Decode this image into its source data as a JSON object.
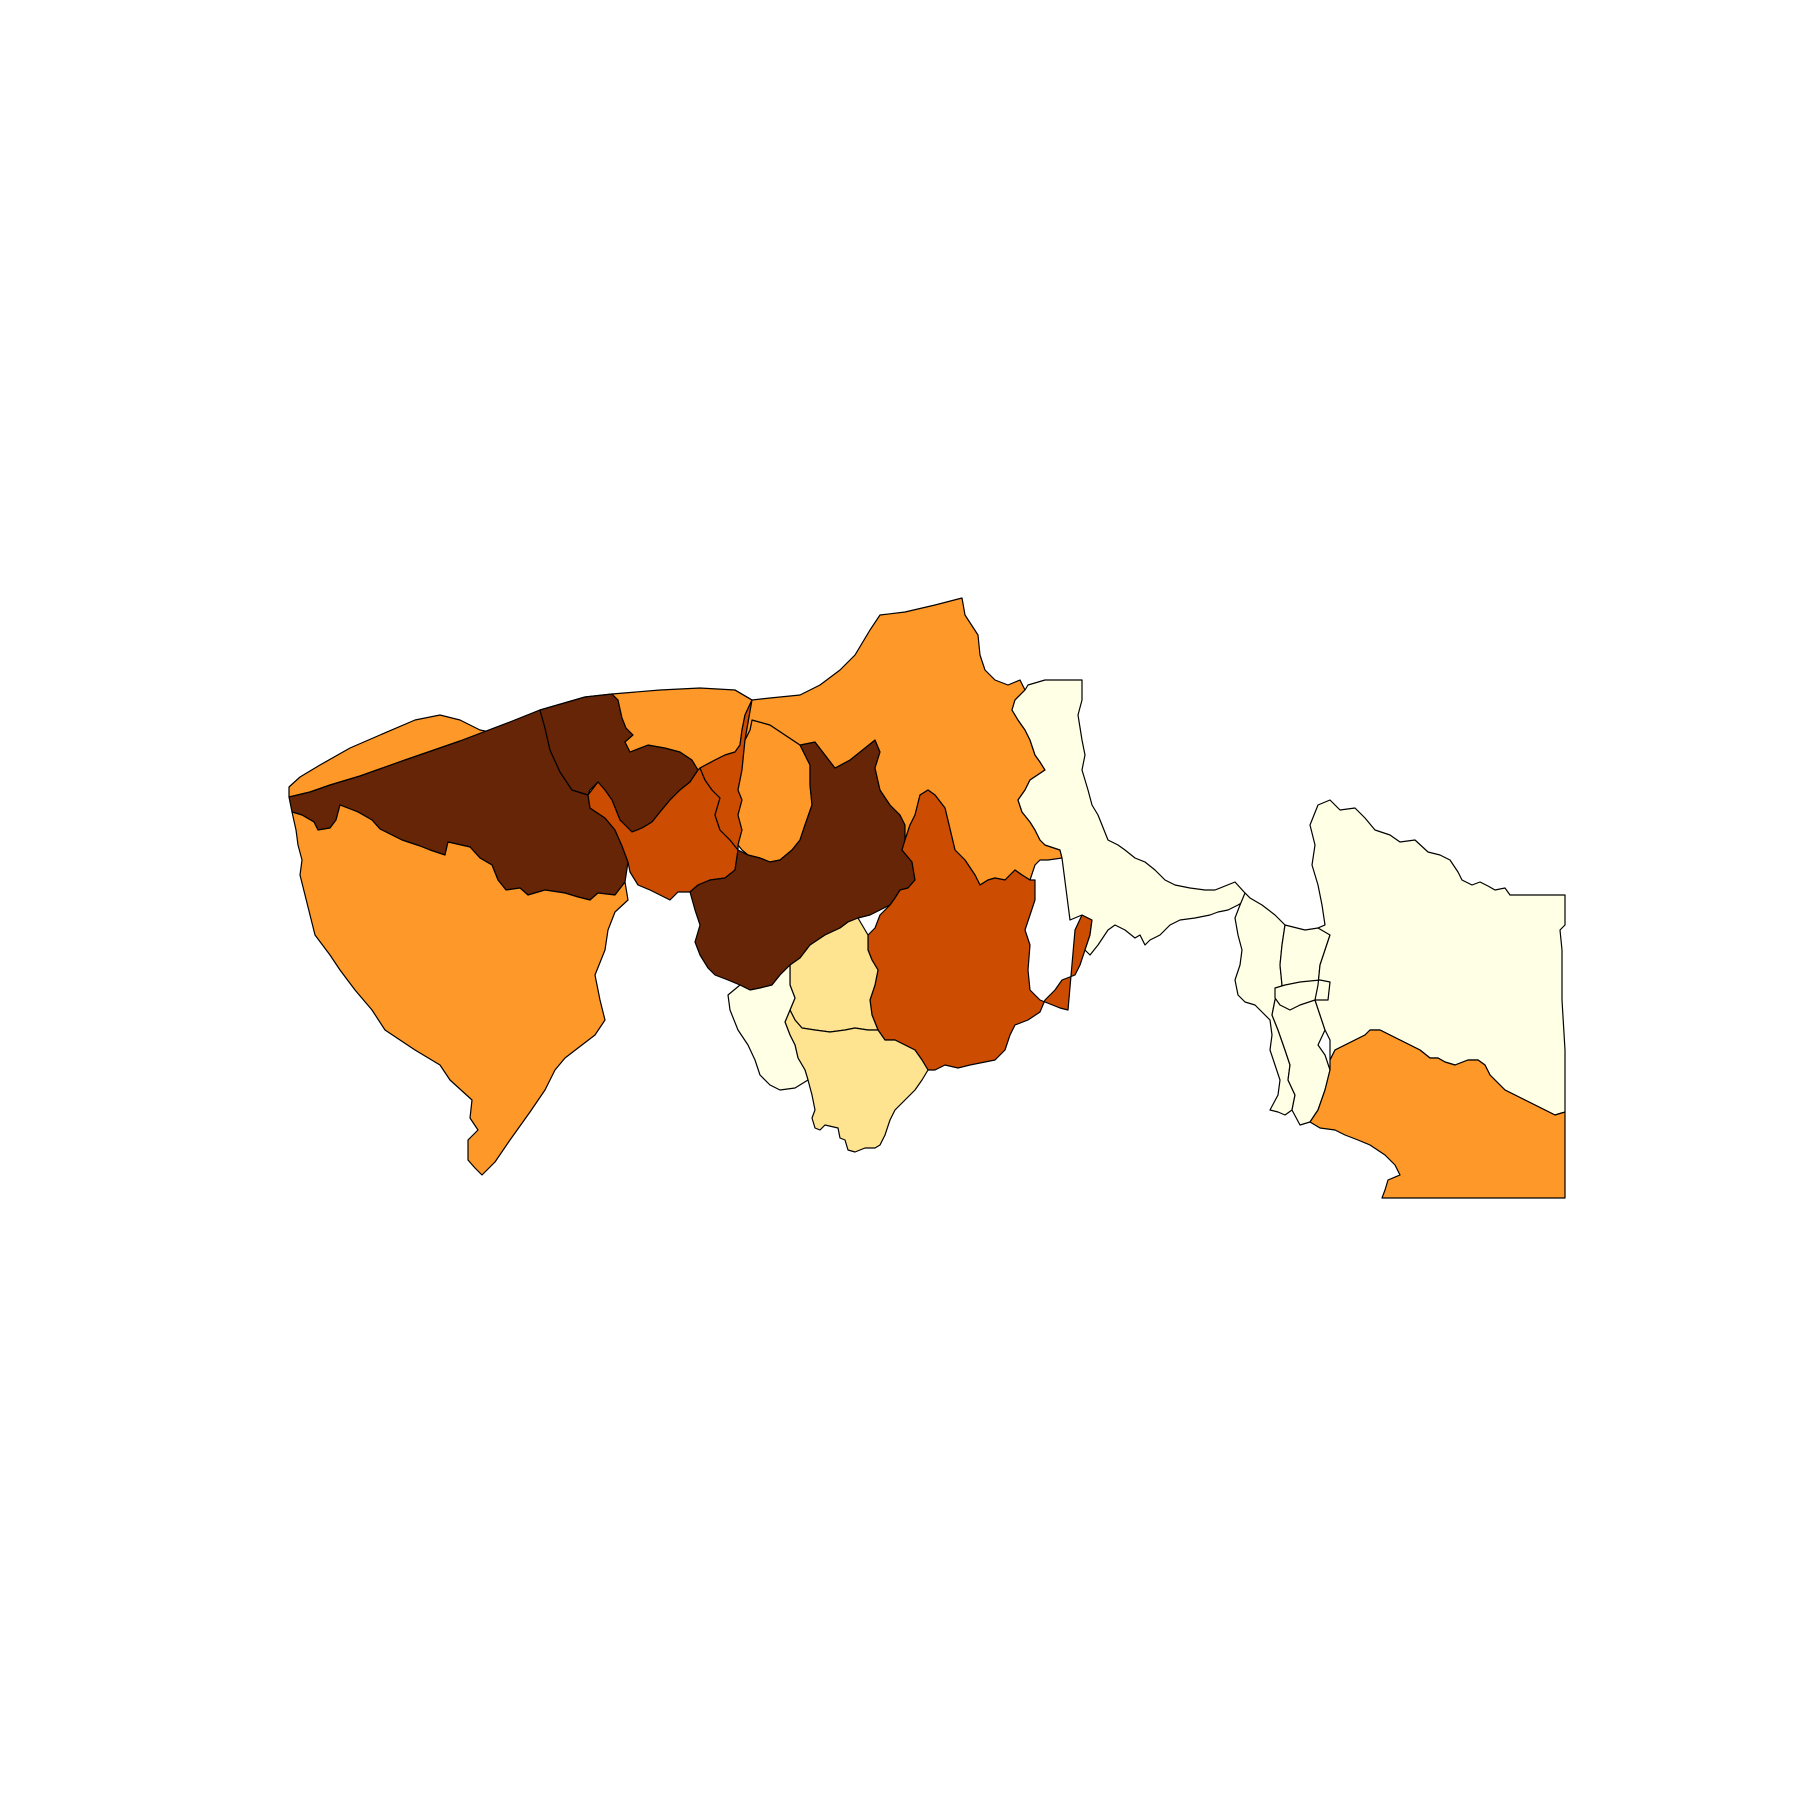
{
  "map": {
    "type": "choropleth",
    "legend": null,
    "colors": {
      "class1": "#ffffe5",
      "class2": "#fee391",
      "class3": "#fe9929",
      "class4": "#cc4c02",
      "class5": "#662506",
      "outline": "#000000",
      "background": "#ffffff"
    },
    "regions": [
      {
        "id": "r01",
        "class": 3
      },
      {
        "id": "r02",
        "class": 5
      },
      {
        "id": "r03",
        "class": 3
      },
      {
        "id": "r04",
        "class": 5
      },
      {
        "id": "r05",
        "class": 3
      },
      {
        "id": "r06",
        "class": 4
      },
      {
        "id": "r07",
        "class": 4
      },
      {
        "id": "r08",
        "class": 3
      },
      {
        "id": "r09",
        "class": 5
      },
      {
        "id": "r10",
        "class": 3
      },
      {
        "id": "r11",
        "class": 4
      },
      {
        "id": "r12",
        "class": 1
      },
      {
        "id": "r13",
        "class": 2
      },
      {
        "id": "r14",
        "class": 2
      },
      {
        "id": "r15",
        "class": 1
      },
      {
        "id": "r16",
        "class": 1
      },
      {
        "id": "r17",
        "class": 1
      },
      {
        "id": "r18",
        "class": 1
      },
      {
        "id": "r19",
        "class": 3
      }
    ]
  }
}
